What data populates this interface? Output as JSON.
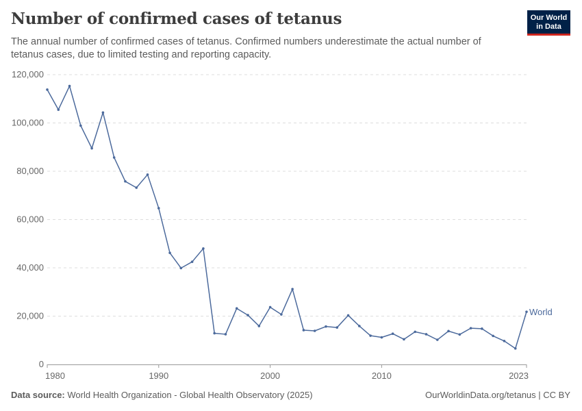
{
  "header": {
    "title": "Number of confirmed cases of tetanus",
    "subtitle": "The annual number of confirmed cases of tetanus. Confirmed numbers underestimate the actual number of tetanus cases, due to limited testing and reporting capacity.",
    "logo_text": "Our World in Data"
  },
  "footer": {
    "source_label": "Data source:",
    "source": "World Health Organization - Global Health Observatory (2025)",
    "link": "OurWorldinData.org/tetanus | CC BY"
  },
  "chart_data": {
    "type": "line",
    "title": "Number of confirmed cases of tetanus",
    "xlim": [
      1980,
      2023
    ],
    "ylim": [
      0,
      120000
    ],
    "grid": "horizontal dashed",
    "x_ticks": [
      "1980",
      "1990",
      "2000",
      "2010",
      "2023"
    ],
    "y_ticks": [
      "0",
      "20,000",
      "40,000",
      "60,000",
      "80,000",
      "100,000",
      "120,000"
    ],
    "series": [
      {
        "name": "World",
        "color": "#4c6a9c",
        "x": [
          1980,
          1981,
          1982,
          1983,
          1984,
          1985,
          1986,
          1987,
          1988,
          1989,
          1990,
          1991,
          1992,
          1993,
          1994,
          1995,
          1996,
          1997,
          1998,
          1999,
          2000,
          2001,
          2002,
          2003,
          2004,
          2005,
          2006,
          2007,
          2008,
          2009,
          2010,
          2011,
          2012,
          2013,
          2014,
          2015,
          2016,
          2017,
          2018,
          2019,
          2020,
          2021,
          2022,
          2023
        ],
        "values": [
          113800,
          105500,
          115300,
          98900,
          89500,
          104300,
          85700,
          75800,
          73200,
          78600,
          64700,
          46200,
          39900,
          42500,
          48000,
          12900,
          12500,
          23200,
          20400,
          15900,
          23700,
          20700,
          31200,
          14200,
          13900,
          15700,
          15300,
          20300,
          15900,
          11900,
          11200,
          12700,
          10400,
          13500,
          12500,
          10200,
          13800,
          12400,
          15000,
          14800,
          11800,
          9700,
          6600,
          21800
        ]
      }
    ]
  }
}
